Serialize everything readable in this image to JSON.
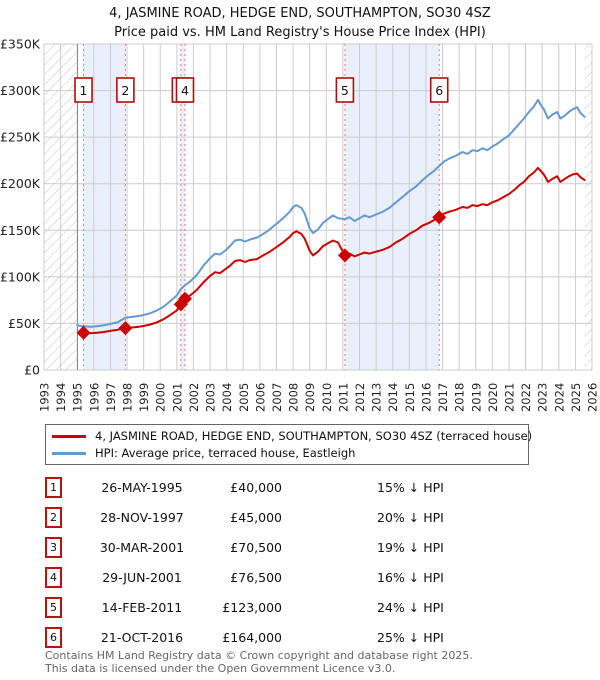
{
  "title": "4, JASMINE ROAD, HEDGE END, SOUTHAMPTON, SO30 4SZ",
  "subtitle": "Price paid vs. HM Land Registry's House Price Index (HPI)",
  "colors": {
    "price_line": "#cc0000",
    "hpi_line": "#6699cc",
    "band_fill": "#eaf0fb",
    "dashed_sale_line": "#f07878",
    "grid": "#cccccc",
    "hatch": "#c4c4c4",
    "data_start_line": "#888888",
    "marker_box_border": "#aa1111"
  },
  "chart_data": {
    "type": "line",
    "title": "Price paid vs. HM Land Registry's House Price Index (HPI)",
    "x_axis": {
      "label": "",
      "years": [
        1993,
        1994,
        1995,
        1996,
        1997,
        1998,
        1999,
        2000,
        2001,
        2002,
        2003,
        2004,
        2005,
        2006,
        2007,
        2008,
        2009,
        2010,
        2011,
        2012,
        2013,
        2014,
        2015,
        2016,
        2017,
        2018,
        2019,
        2020,
        2021,
        2022,
        2023,
        2024,
        2025,
        2026
      ],
      "range": [
        1993,
        2026
      ]
    },
    "y_axis": {
      "label": "",
      "range": [
        0,
        350000
      ],
      "grid": true,
      "ticks": [
        {
          "value": 0,
          "label": "£0"
        },
        {
          "value": 50000,
          "label": "£50K"
        },
        {
          "value": 100000,
          "label": "£100K"
        },
        {
          "value": 150000,
          "label": "£150K"
        },
        {
          "value": 200000,
          "label": "£200K"
        },
        {
          "value": 250000,
          "label": "£250K"
        },
        {
          "value": 300000,
          "label": "£300K"
        },
        {
          "value": 350000,
          "label": "£350K"
        }
      ]
    },
    "legend_position": "below",
    "series": [
      {
        "name": "price-paid",
        "label": "4, JASMINE ROAD, HEDGE END, SOUTHAMPTON, SO30 4SZ (terraced house)",
        "color": "#cc0000",
        "points": [
          [
            1995.38,
            40000
          ],
          [
            1995.8,
            39500
          ],
          [
            1996.2,
            40000
          ],
          [
            1996.6,
            40800
          ],
          [
            1997.0,
            42000
          ],
          [
            1997.4,
            43000
          ],
          [
            1997.9,
            45000
          ],
          [
            1998.3,
            45600
          ],
          [
            1998.7,
            46400
          ],
          [
            1999.0,
            47200
          ],
          [
            1999.4,
            48800
          ],
          [
            1999.8,
            51200
          ],
          [
            2000.2,
            54500
          ],
          [
            2000.6,
            59000
          ],
          [
            2001.0,
            64000
          ],
          [
            2001.24,
            70500
          ],
          [
            2001.49,
            76500
          ],
          [
            2001.8,
            80000
          ],
          [
            2002.2,
            86000
          ],
          [
            2002.6,
            94000
          ],
          [
            2003.0,
            101000
          ],
          [
            2003.3,
            105000
          ],
          [
            2003.6,
            104000
          ],
          [
            2003.9,
            108000
          ],
          [
            2004.2,
            112000
          ],
          [
            2004.5,
            117000
          ],
          [
            2004.8,
            118000
          ],
          [
            2005.1,
            116000
          ],
          [
            2005.4,
            118000
          ],
          [
            2005.8,
            119000
          ],
          [
            2006.2,
            123000
          ],
          [
            2006.6,
            127000
          ],
          [
            2007.0,
            132000
          ],
          [
            2007.4,
            137000
          ],
          [
            2007.8,
            143000
          ],
          [
            2008.0,
            147000
          ],
          [
            2008.2,
            149000
          ],
          [
            2008.5,
            146000
          ],
          [
            2008.7,
            141000
          ],
          [
            2009.0,
            128000
          ],
          [
            2009.2,
            123000
          ],
          [
            2009.5,
            127000
          ],
          [
            2009.8,
            133000
          ],
          [
            2010.1,
            136000
          ],
          [
            2010.4,
            139000
          ],
          [
            2010.7,
            137000
          ],
          [
            2011.12,
            123000
          ],
          [
            2011.4,
            125000
          ],
          [
            2011.7,
            122000
          ],
          [
            2012.0,
            124000
          ],
          [
            2012.3,
            126000
          ],
          [
            2012.6,
            125000
          ],
          [
            2013.0,
            127000
          ],
          [
            2013.4,
            129000
          ],
          [
            2013.8,
            132000
          ],
          [
            2014.2,
            137000
          ],
          [
            2014.6,
            141000
          ],
          [
            2015.0,
            146000
          ],
          [
            2015.4,
            150000
          ],
          [
            2015.8,
            155000
          ],
          [
            2016.2,
            158000
          ],
          [
            2016.5,
            161000
          ],
          [
            2016.8,
            164000
          ],
          [
            2017.1,
            168000
          ],
          [
            2017.4,
            170000
          ],
          [
            2017.8,
            172000
          ],
          [
            2018.2,
            175000
          ],
          [
            2018.5,
            174000
          ],
          [
            2018.8,
            177000
          ],
          [
            2019.1,
            176000
          ],
          [
            2019.4,
            178000
          ],
          [
            2019.7,
            177000
          ],
          [
            2020.0,
            180000
          ],
          [
            2020.3,
            182000
          ],
          [
            2020.6,
            185000
          ],
          [
            2021.0,
            189000
          ],
          [
            2021.3,
            193000
          ],
          [
            2021.6,
            198000
          ],
          [
            2021.9,
            202000
          ],
          [
            2022.2,
            208000
          ],
          [
            2022.5,
            212000
          ],
          [
            2022.75,
            217000
          ],
          [
            2022.9,
            214000
          ],
          [
            2023.1,
            210000
          ],
          [
            2023.35,
            202000
          ],
          [
            2023.6,
            205000
          ],
          [
            2023.9,
            208000
          ],
          [
            2024.1,
            202000
          ],
          [
            2024.35,
            205000
          ],
          [
            2024.6,
            208000
          ],
          [
            2024.85,
            210000
          ],
          [
            2025.1,
            211000
          ],
          [
            2025.3,
            207000
          ],
          [
            2025.55,
            204000
          ]
        ]
      },
      {
        "name": "hpi",
        "label": "HPI: Average price, terraced house, Eastleigh",
        "color": "#6699cc",
        "points": [
          [
            1995.0,
            48000
          ],
          [
            1995.2,
            47200
          ],
          [
            1995.38,
            47000
          ],
          [
            1995.8,
            46500
          ],
          [
            1996.2,
            47000
          ],
          [
            1996.6,
            48000
          ],
          [
            1997.0,
            49500
          ],
          [
            1997.4,
            51000
          ],
          [
            1997.9,
            56200
          ],
          [
            1998.3,
            57000
          ],
          [
            1998.7,
            58000
          ],
          [
            1999.0,
            59000
          ],
          [
            1999.4,
            61000
          ],
          [
            1999.8,
            64000
          ],
          [
            2000.2,
            68000
          ],
          [
            2000.6,
            74000
          ],
          [
            2001.0,
            80000
          ],
          [
            2001.24,
            87000
          ],
          [
            2001.49,
            91000
          ],
          [
            2001.8,
            95000
          ],
          [
            2002.2,
            102000
          ],
          [
            2002.6,
            112000
          ],
          [
            2003.0,
            120000
          ],
          [
            2003.3,
            125000
          ],
          [
            2003.6,
            124000
          ],
          [
            2003.9,
            128000
          ],
          [
            2004.2,
            133000
          ],
          [
            2004.5,
            139000
          ],
          [
            2004.8,
            140000
          ],
          [
            2005.1,
            138000
          ],
          [
            2005.4,
            140000
          ],
          [
            2005.8,
            142000
          ],
          [
            2006.2,
            146000
          ],
          [
            2006.6,
            151000
          ],
          [
            2007.0,
            157000
          ],
          [
            2007.4,
            163000
          ],
          [
            2007.8,
            170000
          ],
          [
            2008.0,
            175000
          ],
          [
            2008.2,
            177000
          ],
          [
            2008.5,
            174000
          ],
          [
            2008.7,
            168000
          ],
          [
            2009.0,
            152000
          ],
          [
            2009.2,
            147000
          ],
          [
            2009.5,
            151000
          ],
          [
            2009.8,
            158000
          ],
          [
            2010.1,
            162000
          ],
          [
            2010.4,
            166000
          ],
          [
            2010.7,
            163000
          ],
          [
            2011.12,
            162000
          ],
          [
            2011.4,
            164000
          ],
          [
            2011.7,
            160000
          ],
          [
            2012.0,
            163000
          ],
          [
            2012.3,
            166000
          ],
          [
            2012.6,
            164000
          ],
          [
            2013.0,
            167000
          ],
          [
            2013.4,
            170000
          ],
          [
            2013.8,
            174000
          ],
          [
            2014.2,
            180000
          ],
          [
            2014.6,
            186000
          ],
          [
            2015.0,
            192000
          ],
          [
            2015.4,
            197000
          ],
          [
            2015.8,
            204000
          ],
          [
            2016.2,
            210000
          ],
          [
            2016.5,
            214000
          ],
          [
            2016.8,
            219000
          ],
          [
            2017.1,
            224000
          ],
          [
            2017.4,
            227000
          ],
          [
            2017.8,
            230000
          ],
          [
            2018.2,
            234000
          ],
          [
            2018.5,
            232000
          ],
          [
            2018.8,
            236000
          ],
          [
            2019.1,
            235000
          ],
          [
            2019.4,
            238000
          ],
          [
            2019.7,
            236000
          ],
          [
            2020.0,
            240000
          ],
          [
            2020.3,
            243000
          ],
          [
            2020.6,
            247000
          ],
          [
            2021.0,
            252000
          ],
          [
            2021.3,
            258000
          ],
          [
            2021.6,
            264000
          ],
          [
            2021.9,
            270000
          ],
          [
            2022.2,
            277000
          ],
          [
            2022.5,
            283000
          ],
          [
            2022.75,
            290000
          ],
          [
            2022.9,
            285000
          ],
          [
            2023.1,
            280000
          ],
          [
            2023.35,
            270000
          ],
          [
            2023.6,
            274000
          ],
          [
            2023.9,
            277000
          ],
          [
            2024.1,
            270000
          ],
          [
            2024.35,
            273000
          ],
          [
            2024.6,
            277000
          ],
          [
            2024.85,
            280000
          ],
          [
            2025.1,
            282000
          ],
          [
            2025.3,
            276000
          ],
          [
            2025.55,
            272000
          ]
        ]
      }
    ],
    "sales": [
      {
        "num": "1",
        "year": 1995.38,
        "price": 40000
      },
      {
        "num": "2",
        "year": 1997.9,
        "price": 45000
      },
      {
        "num": "3",
        "year": 2001.24,
        "price": 70500
      },
      {
        "num": "4",
        "year": 2001.49,
        "price": 76500
      },
      {
        "num": "5",
        "year": 2011.12,
        "price": 123000
      },
      {
        "num": "6",
        "year": 2016.8,
        "price": 164000
      }
    ],
    "ownership_bands": [
      [
        1995.38,
        1997.9
      ],
      [
        2001.24,
        2001.49
      ],
      [
        2011.12,
        2016.8
      ]
    ],
    "no_data_hatch": [
      [
        1993,
        1995.02
      ],
      [
        2025.55,
        2026
      ]
    ],
    "data_start_year": 1995.02
  },
  "legend": [
    {
      "label": "4, JASMINE ROAD, HEDGE END, SOUTHAMPTON, SO30 4SZ (terraced house)"
    },
    {
      "label": "HPI: Average price, terraced house, Eastleigh"
    }
  ],
  "table": {
    "rows": [
      {
        "num": "1",
        "date": "26-MAY-1995",
        "price": "£40,000",
        "pct": "15% ↓ HPI"
      },
      {
        "num": "2",
        "date": "28-NOV-1997",
        "price": "£45,000",
        "pct": "20% ↓ HPI"
      },
      {
        "num": "3",
        "date": "30-MAR-2001",
        "price": "£70,500",
        "pct": "19% ↓ HPI"
      },
      {
        "num": "4",
        "date": "29-JUN-2001",
        "price": "£76,500",
        "pct": "16% ↓ HPI"
      },
      {
        "num": "5",
        "date": "14-FEB-2011",
        "price": "£123,000",
        "pct": "24% ↓ HPI"
      },
      {
        "num": "6",
        "date": "21-OCT-2016",
        "price": "£164,000",
        "pct": "25% ↓ HPI"
      }
    ]
  },
  "footer": {
    "line1": "Contains HM Land Registry data © Crown copyright and database right 2025.",
    "line2": "This data is licensed under the Open Government Licence v3.0."
  }
}
